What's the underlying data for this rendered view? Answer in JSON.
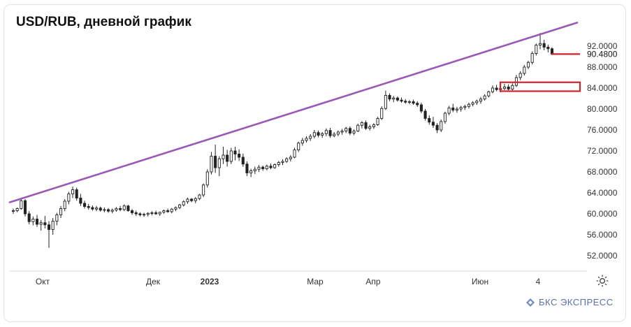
{
  "title": "USD/RUB, дневной график",
  "brand": "БКС ЭКСПРЕСС",
  "colors": {
    "trendline": "#9b59b6",
    "marker": "#d0232a",
    "candle": "#222222",
    "axis_text": "#333333",
    "brand": "#5b6fa8"
  },
  "icons": {
    "settings": "gear-icon",
    "brand": "bks-logo-icon"
  },
  "chart_data": {
    "type": "candlestick",
    "title": "USD/RUB, дневной график",
    "ylim": [
      50.5,
      95.5
    ],
    "y_ticks": [
      "92.0000",
      "88.0000",
      "84.0000",
      "80.0000",
      "76.0000",
      "72.0000",
      "68.0000",
      "64.0000",
      "60.0000",
      "56.0000",
      "52.0000"
    ],
    "last_price_label": "90.4800",
    "last_price": 90.48,
    "x_labels": [
      "Окт",
      "Дек",
      "2023",
      "Мар",
      "Апр",
      "Июн",
      "4"
    ],
    "x_label_bold": [
      "2023"
    ],
    "series": [
      {
        "values": [
          [
            60.5,
            61.0,
            60.0,
            60.6
          ],
          [
            60.6,
            61.2,
            60.3,
            61.0
          ],
          [
            61.0,
            62.8,
            60.8,
            62.5
          ],
          [
            62.5,
            62.8,
            59.5,
            60.0
          ],
          [
            60.0,
            60.5,
            58.0,
            58.5
          ],
          [
            58.5,
            59.5,
            57.8,
            59.0
          ],
          [
            59.0,
            59.8,
            57.5,
            58.0
          ],
          [
            58.0,
            58.8,
            56.8,
            58.3
          ],
          [
            58.3,
            59.6,
            57.2,
            57.9
          ],
          [
            57.9,
            58.6,
            53.5,
            57.0
          ],
          [
            57.0,
            59.2,
            56.0,
            58.6
          ],
          [
            58.6,
            60.2,
            57.8,
            59.8
          ],
          [
            59.8,
            61.5,
            59.2,
            61.0
          ],
          [
            61.0,
            62.8,
            60.5,
            62.4
          ],
          [
            62.4,
            64.2,
            61.8,
            63.8
          ],
          [
            63.8,
            65.2,
            63.0,
            64.6
          ],
          [
            64.6,
            65.0,
            62.5,
            63.0
          ],
          [
            63.0,
            63.8,
            61.5,
            62.0
          ],
          [
            62.0,
            62.5,
            61.0,
            61.4
          ],
          [
            61.4,
            61.9,
            60.8,
            61.2
          ],
          [
            61.2,
            61.6,
            60.6,
            60.9
          ],
          [
            60.9,
            61.5,
            60.5,
            61.1
          ],
          [
            61.1,
            61.4,
            60.4,
            60.7
          ],
          [
            60.7,
            61.2,
            60.3,
            60.8
          ],
          [
            60.8,
            61.1,
            60.2,
            60.5
          ],
          [
            60.5,
            61.0,
            60.1,
            60.7
          ],
          [
            60.7,
            61.3,
            60.4,
            61.0
          ],
          [
            61.0,
            61.5,
            60.5,
            60.8
          ],
          [
            60.8,
            61.8,
            60.5,
            61.5
          ],
          [
            61.5,
            61.7,
            60.4,
            60.6
          ],
          [
            60.6,
            60.9,
            59.8,
            60.2
          ],
          [
            60.2,
            60.6,
            59.6,
            60.0
          ],
          [
            60.0,
            60.3,
            59.5,
            59.8
          ],
          [
            59.8,
            60.2,
            59.4,
            59.9
          ],
          [
            59.9,
            60.3,
            59.5,
            60.1
          ],
          [
            60.1,
            60.5,
            59.7,
            60.2
          ],
          [
            60.2,
            60.6,
            59.8,
            60.0
          ],
          [
            60.0,
            60.4,
            59.6,
            60.3
          ],
          [
            60.3,
            60.8,
            60.0,
            60.6
          ],
          [
            60.6,
            61.0,
            60.2,
            60.4
          ],
          [
            60.4,
            61.1,
            60.1,
            60.9
          ],
          [
            60.9,
            61.4,
            60.5,
            61.2
          ],
          [
            61.2,
            61.9,
            60.9,
            61.7
          ],
          [
            61.7,
            62.6,
            61.4,
            62.3
          ],
          [
            62.3,
            63.1,
            61.9,
            62.8
          ],
          [
            62.8,
            63.0,
            62.2,
            62.5
          ],
          [
            62.5,
            63.2,
            62.0,
            62.9
          ],
          [
            62.9,
            63.8,
            62.6,
            63.6
          ],
          [
            63.6,
            65.8,
            63.2,
            65.5
          ],
          [
            65.5,
            68.5,
            65.0,
            68.0
          ],
          [
            68.0,
            71.8,
            67.5,
            71.0
          ],
          [
            71.0,
            73.2,
            67.8,
            68.8
          ],
          [
            68.8,
            71.0,
            67.2,
            70.5
          ],
          [
            70.5,
            72.8,
            69.5,
            71.2
          ],
          [
            71.2,
            72.2,
            69.0,
            70.0
          ],
          [
            70.0,
            72.6,
            69.5,
            72.0
          ],
          [
            72.0,
            72.8,
            70.2,
            71.4
          ],
          [
            71.4,
            72.3,
            70.1,
            70.8
          ],
          [
            70.8,
            71.5,
            69.0,
            69.5
          ],
          [
            69.5,
            70.0,
            67.2,
            67.8
          ],
          [
            67.8,
            68.6,
            67.0,
            68.2
          ],
          [
            68.2,
            69.0,
            67.6,
            68.5
          ],
          [
            68.5,
            69.3,
            68.0,
            68.9
          ],
          [
            68.9,
            69.2,
            68.2,
            68.6
          ],
          [
            68.6,
            69.4,
            68.3,
            69.1
          ],
          [
            69.1,
            69.6,
            68.5,
            68.8
          ],
          [
            68.8,
            69.6,
            68.6,
            69.4
          ],
          [
            69.4,
            70.1,
            69.0,
            69.8
          ],
          [
            69.8,
            70.4,
            69.3,
            70.0
          ],
          [
            70.0,
            70.8,
            69.7,
            70.5
          ],
          [
            70.5,
            71.2,
            70.0,
            70.8
          ],
          [
            70.8,
            72.6,
            70.6,
            72.2
          ],
          [
            72.2,
            73.8,
            71.8,
            73.5
          ],
          [
            73.5,
            74.5,
            73.0,
            74.0
          ],
          [
            74.0,
            74.8,
            73.6,
            74.4
          ],
          [
            74.4,
            75.2,
            73.9,
            74.8
          ],
          [
            74.8,
            76.0,
            74.4,
            75.5
          ],
          [
            75.5,
            75.9,
            74.6,
            75.0
          ],
          [
            75.0,
            75.6,
            74.5,
            75.3
          ],
          [
            75.3,
            76.3,
            74.8,
            75.9
          ],
          [
            75.9,
            76.4,
            74.5,
            74.9
          ],
          [
            74.9,
            75.6,
            74.6,
            75.2
          ],
          [
            75.2,
            75.9,
            74.8,
            75.6
          ],
          [
            75.6,
            76.2,
            75.1,
            75.8
          ],
          [
            75.8,
            76.6,
            75.4,
            76.3
          ],
          [
            76.3,
            76.7,
            75.0,
            75.4
          ],
          [
            75.4,
            76.1,
            75.0,
            75.8
          ],
          [
            75.8,
            77.2,
            75.6,
            76.9
          ],
          [
            76.9,
            77.7,
            76.3,
            77.4
          ],
          [
            77.4,
            77.8,
            76.0,
            76.3
          ],
          [
            76.3,
            77.0,
            75.9,
            76.6
          ],
          [
            76.6,
            77.3,
            76.2,
            77.0
          ],
          [
            77.0,
            78.5,
            76.8,
            78.2
          ],
          [
            78.2,
            80.5,
            77.9,
            80.1
          ],
          [
            80.1,
            83.5,
            79.8,
            82.6
          ],
          [
            82.6,
            83.0,
            81.5,
            81.9
          ],
          [
            81.9,
            82.5,
            81.3,
            82.1
          ],
          [
            82.1,
            82.4,
            81.4,
            81.7
          ],
          [
            81.7,
            82.2,
            81.2,
            81.5
          ],
          [
            81.5,
            81.9,
            81.0,
            81.3
          ],
          [
            81.3,
            81.7,
            80.9,
            81.4
          ],
          [
            81.4,
            81.8,
            80.8,
            81.1
          ],
          [
            81.1,
            81.5,
            80.4,
            80.8
          ],
          [
            80.8,
            81.2,
            79.2,
            79.6
          ],
          [
            79.6,
            80.0,
            77.8,
            78.2
          ],
          [
            78.2,
            78.8,
            77.0,
            77.5
          ],
          [
            77.5,
            78.5,
            76.4,
            76.9
          ],
          [
            76.9,
            77.3,
            75.4,
            76.0
          ],
          [
            76.0,
            78.0,
            75.6,
            77.6
          ],
          [
            77.6,
            79.5,
            77.2,
            79.2
          ],
          [
            79.2,
            80.6,
            78.8,
            80.2
          ],
          [
            80.2,
            81.0,
            79.4,
            79.8
          ],
          [
            79.8,
            80.4,
            79.3,
            80.0
          ],
          [
            80.0,
            80.6,
            79.5,
            80.3
          ],
          [
            80.3,
            80.8,
            79.8,
            80.5
          ],
          [
            80.5,
            81.2,
            80.1,
            80.9
          ],
          [
            80.9,
            81.5,
            80.5,
            81.2
          ],
          [
            81.2,
            81.8,
            80.8,
            81.5
          ],
          [
            81.5,
            82.3,
            81.0,
            81.9
          ],
          [
            81.9,
            82.8,
            81.6,
            82.5
          ],
          [
            82.5,
            83.5,
            82.2,
            83.3
          ],
          [
            83.3,
            84.5,
            83.0,
            84.0
          ],
          [
            84.0,
            84.6,
            83.4,
            83.7
          ],
          [
            83.7,
            84.2,
            83.2,
            83.9
          ],
          [
            83.9,
            84.8,
            83.6,
            84.2
          ],
          [
            84.2,
            84.7,
            83.5,
            83.8
          ],
          [
            83.8,
            84.9,
            83.5,
            84.5
          ],
          [
            84.5,
            86.5,
            84.2,
            86.0
          ],
          [
            86.0,
            87.2,
            85.5,
            86.8
          ],
          [
            86.8,
            88.4,
            86.4,
            88.0
          ],
          [
            88.0,
            89.2,
            87.6,
            88.9
          ],
          [
            88.9,
            91.0,
            88.5,
            90.6
          ],
          [
            90.6,
            92.5,
            90.2,
            92.2
          ],
          [
            92.2,
            94.5,
            91.4,
            92.5
          ],
          [
            92.5,
            93.2,
            91.2,
            91.8
          ],
          [
            91.8,
            92.3,
            90.8,
            91.5
          ],
          [
            91.5,
            91.8,
            90.3,
            90.48
          ]
        ]
      }
    ],
    "trendline": {
      "start": [
        0,
        62.2
      ],
      "end": [
        137,
        95.2
      ]
    },
    "markers": [
      {
        "type": "level",
        "value": 90.48
      },
      {
        "type": "box",
        "from": 83.4,
        "to": 85.1
      }
    ]
  }
}
